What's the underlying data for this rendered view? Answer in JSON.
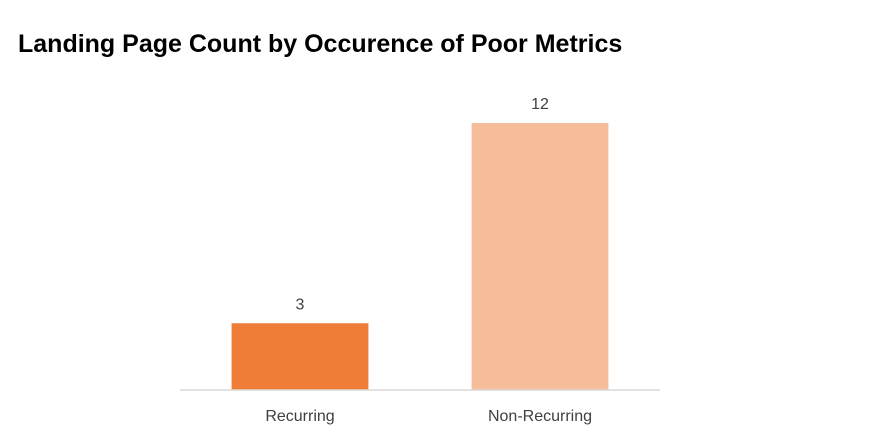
{
  "chart_data": {
    "type": "bar",
    "title": "Landing Page Count by Occurence of Poor Metrics",
    "categories": [
      "Recurring",
      "Non-Recurring"
    ],
    "values": [
      3,
      12
    ],
    "data_labels": [
      "3",
      "12"
    ],
    "colors": [
      "#f07d37",
      "#f6bd9b"
    ],
    "axis_color": "#d9d9d9",
    "ylim": [
      0,
      12
    ],
    "grid": false,
    "legend": "none",
    "xlabel": "",
    "ylabel": ""
  }
}
